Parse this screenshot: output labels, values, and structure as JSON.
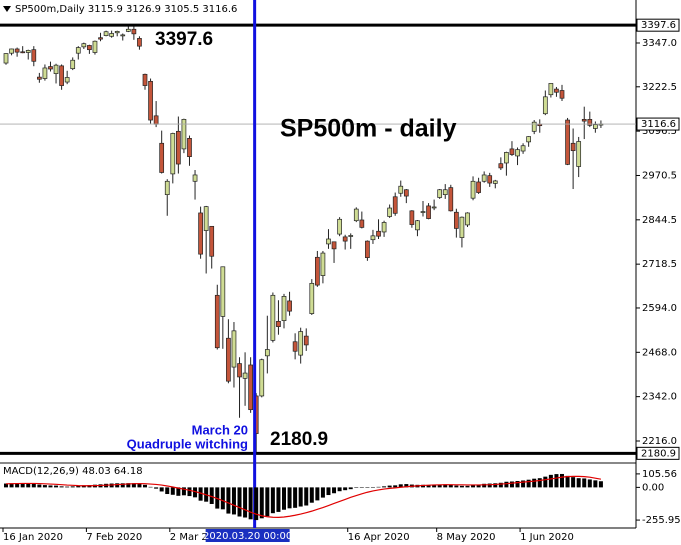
{
  "chart_data": [
    {
      "type": "candlestick",
      "title": "SP500m,Daily 3115.9 3126.9 3105.5 3116.6",
      "categories": [
        "16 Jan 2020",
        null,
        null,
        null,
        null,
        null,
        null,
        null,
        null,
        null,
        null,
        null,
        null,
        null,
        null,
        "7 Feb 2020",
        null,
        null,
        null,
        null,
        null,
        null,
        null,
        null,
        null,
        null,
        null,
        null,
        null,
        null,
        "2 Mar 2020",
        null,
        null,
        null,
        null,
        null,
        null,
        null,
        null,
        null,
        null,
        null,
        null,
        null,
        "2020.03.20 00:00",
        null,
        null,
        null,
        null,
        null,
        null,
        null,
        null,
        null,
        null,
        null,
        null,
        null,
        null,
        null,
        null,
        null,
        "16 Apr 2020",
        null,
        null,
        null,
        null,
        null,
        null,
        null,
        null,
        null,
        null,
        null,
        null,
        null,
        null,
        null,
        "8 May 2020",
        null,
        null,
        null,
        null,
        null,
        null,
        null,
        null,
        null,
        null,
        null,
        null,
        null,
        null,
        "1 Jun 2020",
        null,
        null,
        null,
        null,
        null,
        null,
        null,
        null,
        null,
        null,
        null,
        null,
        null,
        null
      ],
      "highlight": "2020.03.20 00:00",
      "ohlc": [
        [
          3290,
          3318,
          3285,
          3317
        ],
        [
          3318,
          3331,
          3312,
          3330
        ],
        [
          3330,
          3334,
          3308,
          3321
        ],
        [
          3322,
          3338,
          3318,
          3321
        ],
        [
          3320,
          3328,
          3300,
          3326
        ],
        [
          3328,
          3338,
          3281,
          3295
        ],
        [
          3250,
          3262,
          3234,
          3244
        ],
        [
          3246,
          3286,
          3240,
          3276
        ],
        [
          3280,
          3294,
          3266,
          3273
        ],
        [
          3260,
          3288,
          3232,
          3284
        ],
        [
          3282,
          3286,
          3214,
          3226
        ],
        [
          3236,
          3268,
          3230,
          3249
        ],
        [
          3274,
          3306,
          3270,
          3298
        ],
        [
          3318,
          3338,
          3300,
          3334
        ],
        [
          3336,
          3348,
          3330,
          3345
        ],
        [
          3340,
          3342,
          3316,
          3328
        ],
        [
          3320,
          3354,
          3314,
          3352
        ],
        [
          3362,
          3376,
          3352,
          3358
        ],
        [
          3368,
          3382,
          3366,
          3379
        ],
        [
          3366,
          3382,
          3362,
          3374
        ],
        [
          3376,
          3382,
          3366,
          3380
        ],
        [
          3368,
          3374,
          3354,
          3370
        ],
        [
          3380,
          3394,
          3378,
          3386
        ],
        [
          3386,
          3397.6,
          3356,
          3373
        ],
        [
          3360,
          3366,
          3328,
          3338
        ],
        [
          3258,
          3260,
          3214,
          3226
        ],
        [
          3238,
          3246,
          3118,
          3128
        ],
        [
          3140,
          3182,
          3108,
          3116
        ],
        [
          3062,
          3098,
          2976,
          2979
        ],
        [
          2916,
          2960,
          2856,
          2954
        ],
        [
          2975,
          3092,
          2948,
          3090
        ],
        [
          3096,
          3138,
          2976,
          3003
        ],
        [
          3046,
          3132,
          3034,
          3130
        ],
        [
          3076,
          3084,
          2998,
          3024
        ],
        [
          2954,
          2986,
          2902,
          2972
        ],
        [
          2864,
          2882,
          2734,
          2747
        ],
        [
          2814,
          2884,
          2692,
          2882
        ],
        [
          2826,
          2826,
          2706,
          2741
        ],
        [
          2630,
          2660,
          2476,
          2481
        ],
        [
          2570,
          2712,
          2478,
          2711
        ],
        [
          2508,
          2562,
          2380,
          2386
        ],
        [
          2426,
          2554,
          2368,
          2529
        ],
        [
          2436,
          2454,
          2282,
          2398
        ],
        [
          2394,
          2468,
          2316,
          2409
        ],
        [
          2432,
          2454,
          2296,
          2305
        ],
        [
          2344,
          2352,
          2180.9,
          2237
        ],
        [
          2344,
          2450,
          2340,
          2447
        ],
        [
          2458,
          2572,
          2408,
          2476
        ],
        [
          2502,
          2638,
          2496,
          2630
        ],
        [
          2556,
          2616,
          2518,
          2541
        ],
        [
          2558,
          2634,
          2536,
          2627
        ],
        [
          2614,
          2640,
          2572,
          2585
        ],
        [
          2498,
          2522,
          2448,
          2471
        ],
        [
          2460,
          2538,
          2436,
          2527
        ],
        [
          2514,
          2536,
          2472,
          2489
        ],
        [
          2578,
          2676,
          2574,
          2664
        ],
        [
          2738,
          2756,
          2654,
          2659
        ],
        [
          2686,
          2756,
          2664,
          2750
        ],
        [
          2776,
          2818,
          2762,
          2790
        ],
        [
          2782,
          2782,
          2722,
          2762
        ],
        [
          2804,
          2852,
          2798,
          2846
        ],
        [
          2796,
          2802,
          2760,
          2784
        ],
        [
          2800,
          2806,
          2762,
          2800
        ],
        [
          2842,
          2880,
          2838,
          2875
        ],
        [
          2844,
          2868,
          2820,
          2823
        ],
        [
          2784,
          2786,
          2728,
          2737
        ],
        [
          2788,
          2816,
          2776,
          2799
        ],
        [
          2812,
          2846,
          2790,
          2798
        ],
        [
          2810,
          2842,
          2796,
          2837
        ],
        [
          2854,
          2888,
          2850,
          2878
        ],
        [
          2910,
          2922,
          2856,
          2863
        ],
        [
          2920,
          2956,
          2910,
          2940
        ],
        [
          2930,
          2932,
          2892,
          2912
        ],
        [
          2870,
          2872,
          2822,
          2831
        ],
        [
          2816,
          2844,
          2798,
          2842
        ],
        [
          2868,
          2898,
          2854,
          2868
        ],
        [
          2884,
          2892,
          2846,
          2848
        ],
        [
          2880,
          2902,
          2872,
          2881
        ],
        [
          2908,
          2932,
          2904,
          2930
        ],
        [
          2916,
          2946,
          2904,
          2930
        ],
        [
          2936,
          2944,
          2868,
          2870
        ],
        [
          2866,
          2876,
          2794,
          2820
        ],
        [
          2794,
          2854,
          2766,
          2852
        ],
        [
          2830,
          2866,
          2824,
          2864
        ],
        [
          2906,
          2968,
          2900,
          2954
        ],
        [
          2952,
          2964,
          2918,
          2922
        ],
        [
          2954,
          2982,
          2950,
          2972
        ],
        [
          2970,
          2978,
          2938,
          2949
        ],
        [
          2948,
          2958,
          2934,
          2955
        ],
        [
          3004,
          3022,
          2986,
          2992
        ],
        [
          3006,
          3038,
          2970,
          3036
        ],
        [
          3046,
          3068,
          3026,
          3030
        ],
        [
          3026,
          3050,
          3000,
          3044
        ],
        [
          3040,
          3062,
          3032,
          3055
        ],
        [
          3066,
          3082,
          3052,
          3081
        ],
        [
          3096,
          3128,
          3088,
          3122
        ],
        [
          3116,
          3130,
          3092,
          3112
        ],
        [
          3146,
          3212,
          3142,
          3194
        ],
        [
          3200,
          3232,
          3192,
          3232
        ],
        [
          3216,
          3222,
          3194,
          3207
        ],
        [
          3212,
          3228,
          3182,
          3190
        ],
        [
          3128,
          3134,
          3000,
          3002
        ],
        [
          3062,
          3104,
          2932,
          3041
        ],
        [
          2996,
          3080,
          2966,
          3067
        ],
        [
          3130,
          3166,
          3074,
          3125
        ],
        [
          3130,
          3152,
          3108,
          3113
        ],
        [
          3104,
          3124,
          3092,
          3115
        ],
        [
          3115.9,
          3126.9,
          3105.5,
          3116.6
        ]
      ],
      "up_color": "#cfdc94",
      "down_color": "#c4553a",
      "ylim": [
        2156.3,
        3418
      ],
      "yticks": [
        {
          "value": 3347,
          "label": "3347.0"
        },
        3222.5,
        3096.5,
        2970.5,
        2844.5,
        2718.5,
        {
          "value": 2594,
          "label": "2594.0"
        },
        {
          "value": 2468,
          "label": "2468.0"
        },
        {
          "value": 2342,
          "label": "2342.0"
        },
        {
          "value": 2216,
          "label": "2216.0"
        }
      ],
      "levels": [
        3397.6,
        2180.9
      ],
      "annotations": [
        "SP500m - daily",
        "March 20",
        "Quadruple witching"
      ]
    },
    {
      "type": "macd",
      "title": "MACD(12,26,9) 48.03 64.18",
      "histogram": [
        30,
        32,
        33,
        33,
        33,
        30,
        22,
        18,
        15,
        14,
        8,
        6,
        8,
        12,
        16,
        18,
        21,
        24,
        28,
        30,
        32,
        32,
        33,
        33,
        30,
        20,
        4,
        -10,
        -32,
        -52,
        -58,
        -66,
        -62,
        -68,
        -78,
        -104,
        -112,
        -130,
        -166,
        -172,
        -205,
        -212,
        -228,
        -236,
        -250,
        -256,
        -242,
        -226,
        -202,
        -192,
        -175,
        -164,
        -160,
        -150,
        -142,
        -120,
        -102,
        -80,
        -60,
        -46,
        -30,
        -22,
        -14,
        -4,
        2,
        0,
        3,
        4,
        8,
        14,
        16,
        24,
        26,
        22,
        20,
        20,
        18,
        18,
        22,
        24,
        20,
        14,
        12,
        12,
        20,
        22,
        28,
        30,
        32,
        36,
        44,
        46,
        50,
        54,
        60,
        68,
        72,
        84,
        98,
        104,
        105,
        90,
        80,
        72,
        70,
        62,
        55,
        48.03
      ],
      "signal": [
        28,
        29,
        30,
        31,
        31,
        31,
        30,
        28,
        26,
        24,
        21,
        18,
        16,
        14,
        13,
        13,
        14,
        15,
        17,
        19,
        22,
        24,
        27,
        29,
        30,
        29,
        26,
        23,
        18,
        11,
        3,
        -6,
        -14,
        -23,
        -33,
        -45,
        -58,
        -72,
        -88,
        -104,
        -122,
        -140,
        -158,
        -176,
        -194,
        -210,
        -222,
        -230,
        -234,
        -235,
        -232,
        -226,
        -218,
        -209,
        -198,
        -186,
        -172,
        -158,
        -142,
        -126,
        -110,
        -94,
        -78,
        -64,
        -50,
        -38,
        -28,
        -20,
        -13,
        -8,
        -4,
        1,
        5,
        9,
        12,
        15,
        17,
        19,
        20,
        21,
        21,
        20,
        20,
        19,
        19,
        19,
        20,
        21,
        23,
        26,
        29,
        33,
        37,
        41,
        45,
        49,
        54,
        60,
        66,
        73,
        80,
        84,
        86,
        86,
        84,
        80,
        72,
        64.18
      ],
      "histogram_color": "#000000",
      "signal_color": "#e00000",
      "ylim": [
        -318,
        183
      ],
      "yticks": [
        105.56,
        {
          "value": 0,
          "label": "0.00"
        },
        -255.95
      ]
    }
  ]
}
